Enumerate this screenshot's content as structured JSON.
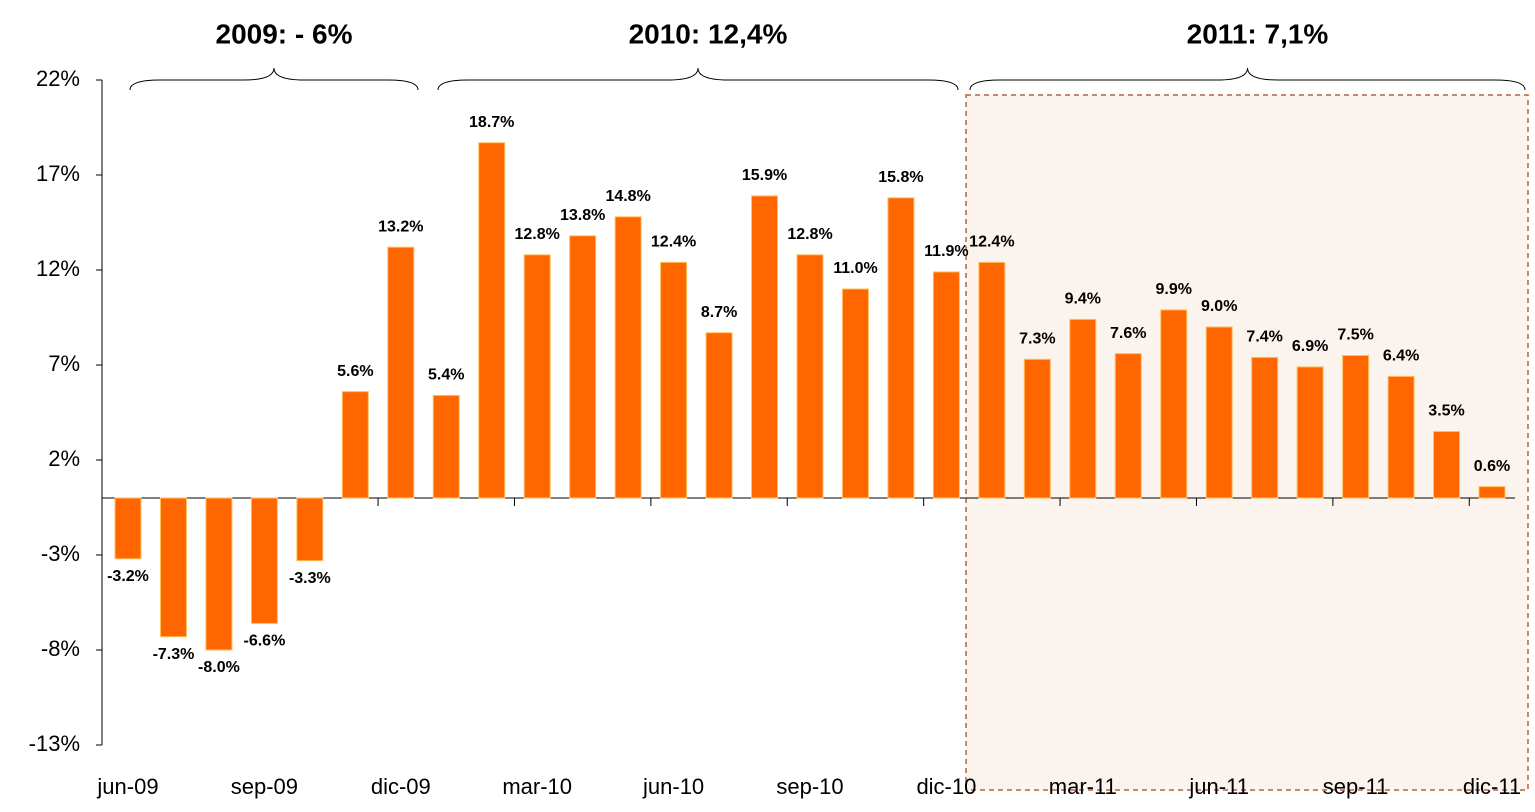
{
  "chart_data": {
    "type": "bar",
    "categories": [
      "jun-09",
      null,
      null,
      "sep-09",
      null,
      null,
      "dic-09",
      null,
      null,
      "mar-10",
      null,
      null,
      "jun-10",
      null,
      null,
      "sep-10",
      null,
      null,
      "dic-10",
      null,
      null,
      "mar-11",
      null,
      null,
      "jun-11",
      null,
      null,
      "sep-11",
      null,
      null,
      "dic-11"
    ],
    "values": [
      -3.2,
      -7.3,
      -8.0,
      -6.6,
      -3.3,
      5.6,
      13.2,
      5.4,
      18.7,
      12.8,
      13.8,
      14.8,
      12.4,
      8.7,
      15.9,
      12.8,
      11.0,
      15.8,
      11.9,
      12.4,
      7.3,
      9.4,
      7.6,
      9.9,
      9.0,
      7.4,
      6.9,
      7.5,
      6.4,
      3.5,
      0.6
    ],
    "value_labels": [
      "-3.2%",
      "-7.3%",
      "-8.0%",
      "-6.6%",
      "-3.3%",
      "5.6%",
      "13.2%",
      "5.4%",
      "18.7%",
      "12.8%",
      "13.8%",
      "14.8%",
      "12.4%",
      "8.7%",
      "15.9%",
      "12.8%",
      "11.0%",
      "15.8%",
      "11.9%",
      "12.4%",
      "7.3%",
      "9.4%",
      "7.6%",
      "9.9%",
      "9.0%",
      "7.4%",
      "6.9%",
      "7.5%",
      "6.4%",
      "3.5%",
      "0.6%"
    ],
    "color": "#ff6600",
    "ylim": [
      -13,
      22
    ],
    "yticks": [
      {
        "value": -13,
        "label": "-13%"
      },
      {
        "value": -8,
        "label": "-8%"
      },
      {
        "value": -3,
        "label": "-3%"
      },
      {
        "value": 2,
        "label": "2%"
      },
      {
        "value": 7,
        "label": "7%"
      },
      {
        "value": 12,
        "label": "12%"
      },
      {
        "value": 17,
        "label": "17%"
      },
      {
        "value": 22,
        "label": "22%"
      }
    ],
    "annotations": [
      "2009: - 6%",
      "2010: 12,4%",
      "2011: 7,1%"
    ]
  }
}
